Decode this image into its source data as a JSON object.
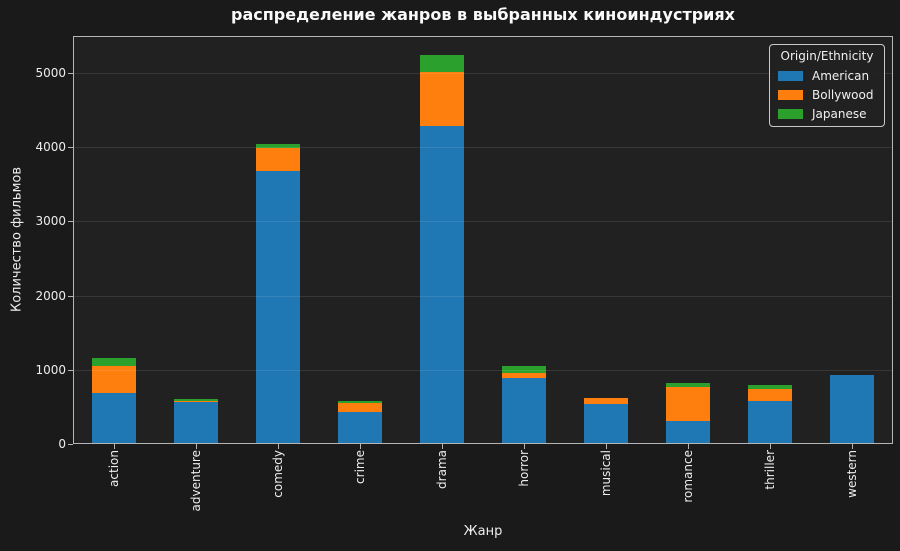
{
  "figure": {
    "background": "#1a1a1a",
    "axes_background": "#212121",
    "text_color": "#f0f0f0",
    "spine_color": "#b5b5b5"
  },
  "chart_data": {
    "type": "bar",
    "stacked": true,
    "title": "распределение жанров в выбранных киноиндустриях",
    "xlabel": "Жанр",
    "ylabel": "Количество фильмов",
    "grid": true,
    "legend_title": "Origin/Ethnicity",
    "legend_position": "upper right",
    "categories": [
      "action",
      "adventure",
      "comedy",
      "crime",
      "drama",
      "horror",
      "musical",
      "romance",
      "thriller",
      "western"
    ],
    "series": [
      {
        "name": "American",
        "color": "#1f77b4",
        "values": [
          685,
          565,
          3680,
          435,
          4290,
          895,
          545,
          315,
          580,
          925
        ]
      },
      {
        "name": "Bollywood",
        "color": "#ff7f0e",
        "values": [
          370,
          15,
          310,
          120,
          720,
          65,
          80,
          450,
          160,
          0
        ]
      },
      {
        "name": "Japanese",
        "color": "#2ca02c",
        "values": [
          110,
          25,
          50,
          25,
          240,
          95,
          0,
          55,
          50,
          0
        ]
      }
    ],
    "ylim": [
      0,
      5500
    ],
    "yticks": [
      0,
      1000,
      2000,
      3000,
      4000,
      5000
    ]
  }
}
